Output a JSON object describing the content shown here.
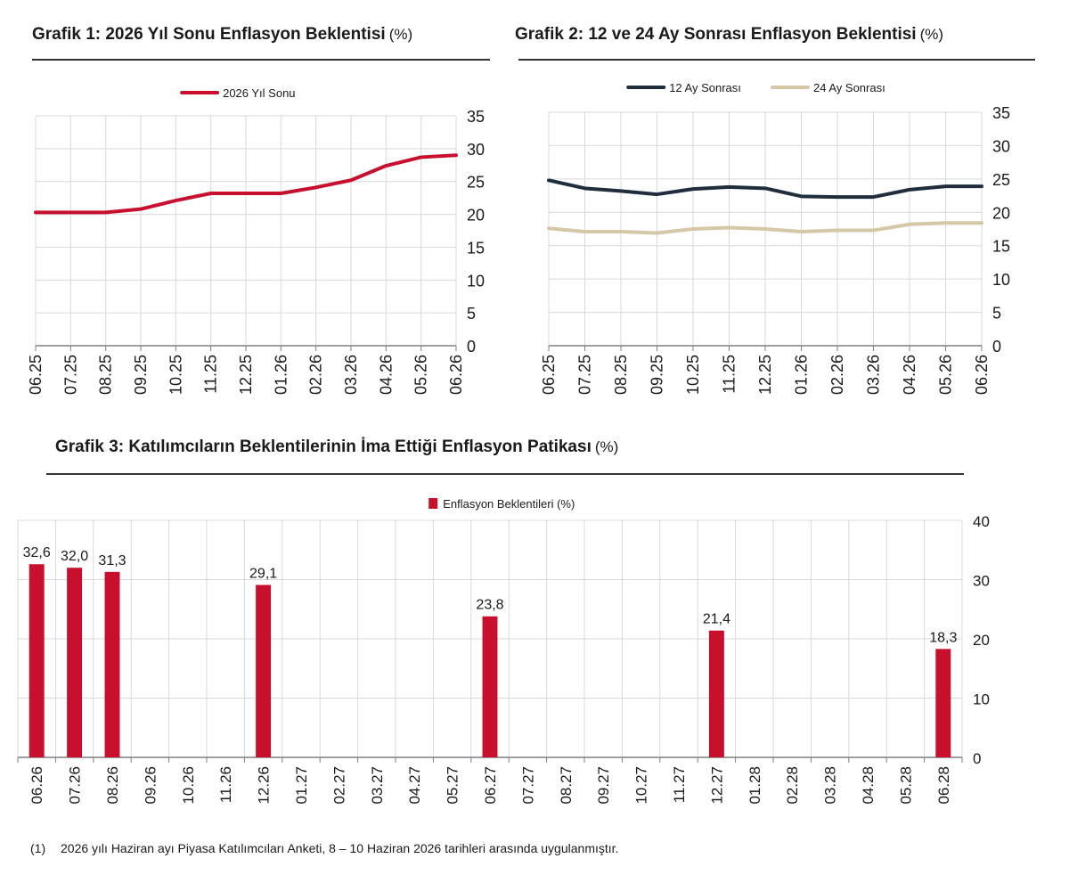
{
  "colors": {
    "red": "#C8102E",
    "navy": "#1F2D3D",
    "tan": "#D6C7A6",
    "grid": "#d9d9d9",
    "axis": "#7f7f7f"
  },
  "chart1": {
    "title": "Grafik 1: 2026 Yıl Sonu Enflasyon Beklentisi",
    "unit": "(%)"
  },
  "chart2": {
    "title": "Grafik 2: 12 ve 24 Ay Sonrası Enflasyon Beklentisi",
    "unit": "(%)"
  },
  "chart3": {
    "title": "Grafik 3: Katılımcıların Beklentilerinin İma Ettiği Enflasyon Patikası",
    "unit": "(%)"
  },
  "footnote": {
    "number": "(1)",
    "text": "2026 yılı Haziran ayı Piyasa Katılımcıları Anketi, 8 – 10 Haziran 2026 tarihleri arasında uygulanmıştır."
  },
  "chart_data": [
    {
      "type": "line",
      "title": "Grafik 1: 2026 Yıl Sonu Enflasyon Beklentisi (%)",
      "categories": [
        "06.25",
        "07.25",
        "08.25",
        "09.25",
        "10.25",
        "11.25",
        "12.25",
        "01.26",
        "02.26",
        "03.26",
        "04.26",
        "05.26",
        "06.26"
      ],
      "series": [
        {
          "name": "2026 Yıl Sonu",
          "color": "#C8102E",
          "values": [
            20.3,
            20.3,
            20.3,
            20.8,
            22.1,
            23.2,
            23.2,
            23.2,
            24.1,
            25.2,
            27.4,
            28.7,
            29.0
          ]
        }
      ],
      "ylim": [
        0,
        35
      ],
      "yticks": [
        0,
        5,
        10,
        15,
        20,
        25,
        30,
        35
      ],
      "grid": true,
      "legend": "top-center"
    },
    {
      "type": "line",
      "title": "Grafik 2: 12 ve 24 Ay Sonrası Enflasyon Beklentisi (%)",
      "categories": [
        "06.25",
        "07.25",
        "08.25",
        "09.25",
        "10.25",
        "11.25",
        "12.25",
        "01.26",
        "02.26",
        "03.26",
        "04.26",
        "05.26",
        "06.26"
      ],
      "series": [
        {
          "name": "12 Ay Sonrası",
          "color": "#1F2D3D",
          "values": [
            24.8,
            23.6,
            23.2,
            22.7,
            23.5,
            23.8,
            23.6,
            22.4,
            22.3,
            22.3,
            23.4,
            23.9,
            23.9
          ]
        },
        {
          "name": "24 Ay Sonrası",
          "color": "#D6C7A6",
          "values": [
            17.6,
            17.1,
            17.1,
            16.9,
            17.5,
            17.7,
            17.5,
            17.1,
            17.3,
            17.3,
            18.2,
            18.4,
            18.4
          ]
        }
      ],
      "ylim": [
        0,
        35
      ],
      "yticks": [
        0,
        5,
        10,
        15,
        20,
        25,
        30,
        35
      ],
      "grid": true,
      "legend": "top-center"
    },
    {
      "type": "bar",
      "title": "Grafik 3: Katılımcıların Beklentilerinin İma Ettiği Enflasyon Patikası (%)",
      "categories": [
        "06.26",
        "07.26",
        "08.26",
        "09.26",
        "10.26",
        "11.26",
        "12.26",
        "01.27",
        "02.27",
        "03.27",
        "04.27",
        "05.27",
        "06.27",
        "07.27",
        "08.27",
        "09.27",
        "10.27",
        "11.27",
        "12.27",
        "01.28",
        "02.28",
        "03.28",
        "04.28",
        "05.28",
        "06.28"
      ],
      "series": [
        {
          "name": "Enflasyon Beklentileri (%)",
          "color": "#C8102E",
          "values": [
            32.6,
            32.0,
            31.3,
            null,
            null,
            null,
            29.1,
            null,
            null,
            null,
            null,
            null,
            23.8,
            null,
            null,
            null,
            null,
            null,
            21.4,
            null,
            null,
            null,
            null,
            null,
            18.3
          ],
          "labels": [
            "32,6",
            "32,0",
            "31,3",
            "",
            "",
            "",
            "29,1",
            "",
            "",
            "",
            "",
            "",
            "23,8",
            "",
            "",
            "",
            "",
            "",
            "21,4",
            "",
            "",
            "",
            "",
            "",
            "18,3"
          ]
        }
      ],
      "ylim": [
        0,
        40
      ],
      "yticks": [
        0,
        10,
        20,
        30,
        40
      ],
      "grid": true,
      "legend": "top-center"
    }
  ]
}
